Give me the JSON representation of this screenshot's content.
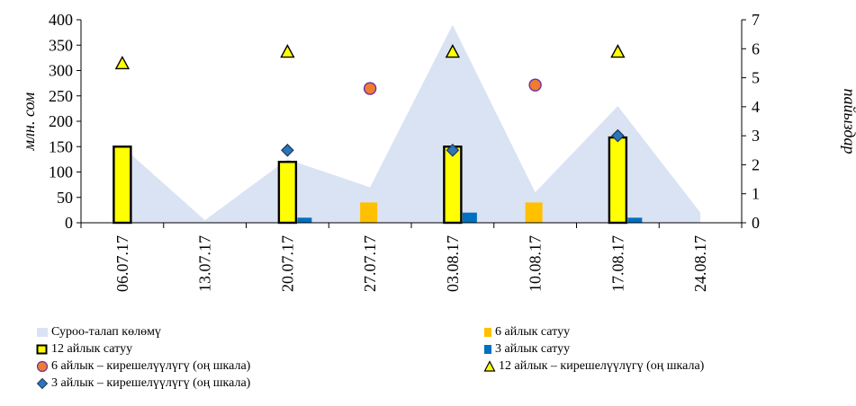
{
  "chart_data": {
    "type": "bar",
    "title": "",
    "x": [
      "06.07.17",
      "13.07.17",
      "20.07.17",
      "27.07.17",
      "03.08.17",
      "10.08.17",
      "17.08.17",
      "24.08.17"
    ],
    "y_left": {
      "label": "млн. сом",
      "ylim": [
        0,
        400
      ],
      "ticks": [
        0,
        50,
        100,
        150,
        200,
        250,
        300,
        350,
        400
      ]
    },
    "y_right": {
      "label": "пайыздар",
      "ylim": [
        0,
        7
      ],
      "ticks": [
        0,
        1,
        2,
        3,
        4,
        5,
        6,
        7
      ]
    },
    "series": [
      {
        "name": "Суроо-талап көлөмү",
        "kind": "area",
        "axis": "left",
        "color": "#dae3f3",
        "values": [
          150,
          5,
          125,
          70,
          390,
          60,
          230,
          20
        ]
      },
      {
        "name": "6 айлык сатуу",
        "kind": "bar",
        "axis": "left",
        "color": "#ffc000",
        "values": [
          0,
          0,
          0,
          40,
          0,
          40,
          0,
          0
        ]
      },
      {
        "name": "12 айлык сатуу",
        "kind": "bar",
        "axis": "left",
        "color": "#ffff00",
        "stroke": "#000000",
        "values": [
          150,
          0,
          120,
          0,
          150,
          0,
          168,
          0
        ]
      },
      {
        "name": "3 айлык сатуу",
        "kind": "bar",
        "axis": "left",
        "color": "#0070c0",
        "values": [
          0,
          0,
          10,
          0,
          20,
          0,
          10,
          0
        ]
      },
      {
        "name": "6 айлык – кирешелүүлүгү (оң шкала)",
        "kind": "marker-circle",
        "axis": "right",
        "color": "#ed7d31",
        "stroke": "#7030a0",
        "values": [
          null,
          null,
          null,
          4.63,
          null,
          4.75,
          null,
          null
        ]
      },
      {
        "name": "12 айлык – кирешелүүлүгү (оң шкала)",
        "kind": "marker-triangle",
        "axis": "right",
        "color": "#ffff00",
        "stroke": "#000000",
        "values": [
          5.5,
          null,
          5.9,
          null,
          5.9,
          null,
          5.9,
          null
        ]
      },
      {
        "name": "3 айлык – кирешелүүлүгү (оң шкала)",
        "kind": "marker-diamond",
        "axis": "right",
        "color": "#2e75b6",
        "stroke": "#1f3864",
        "values": [
          null,
          null,
          2.5,
          null,
          2.5,
          null,
          3.0,
          null
        ]
      }
    ],
    "legend_position": "bottom",
    "grid": false
  }
}
